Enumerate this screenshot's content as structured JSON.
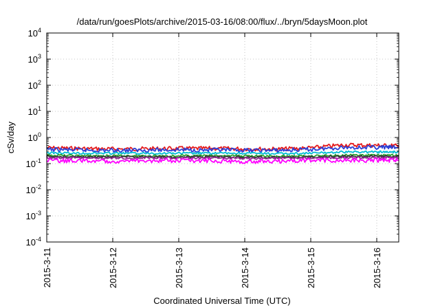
{
  "chart_data": {
    "type": "line",
    "title": "/data/run/goesPlots/archive/2015-03-16/08:00/flux/../bryn/5daysMoon.plot",
    "xlabel": "Coordinated Universal Time (UTC)",
    "ylabel": "cSv/day",
    "y_scale": "log",
    "ylim": [
      0.0001,
      10000
    ],
    "y_ticks": [
      {
        "base": "10",
        "exp": "-4",
        "value": 0.0001
      },
      {
        "base": "10",
        "exp": "-3",
        "value": 0.001
      },
      {
        "base": "10",
        "exp": "-2",
        "value": 0.01
      },
      {
        "base": "10",
        "exp": "-1",
        "value": 0.1
      },
      {
        "base": "10",
        "exp": "0",
        "value": 1
      },
      {
        "base": "10",
        "exp": "1",
        "value": 10
      },
      {
        "base": "10",
        "exp": "2",
        "value": 100
      },
      {
        "base": "10",
        "exp": "3",
        "value": 1000
      },
      {
        "base": "10",
        "exp": "4",
        "value": 10000
      }
    ],
    "xlim": [
      "2015-03-11 00:00",
      "2015-03-16 08:00"
    ],
    "x_ticks": [
      "2015-3-11",
      "2015-3-12",
      "2015-3-13",
      "2015-3-14",
      "2015-3-15",
      "2015-3-16"
    ],
    "grid": true,
    "series": [
      {
        "color": "#e41a1c",
        "x": [
          "2015-03-11 00:00",
          "2015-03-11 12:00",
          "2015-03-12 00:00",
          "2015-03-12 12:00",
          "2015-03-13 00:00",
          "2015-03-13 12:00",
          "2015-03-14 00:00",
          "2015-03-14 12:00",
          "2015-03-15 00:00",
          "2015-03-15 12:00",
          "2015-03-16 00:00",
          "2015-03-16 08:00"
        ],
        "values": [
          0.4,
          0.38,
          0.36,
          0.37,
          0.38,
          0.38,
          0.37,
          0.36,
          0.4,
          0.52,
          0.5,
          0.48
        ]
      },
      {
        "color": "#2c3fd6",
        "x": [
          "2015-03-11 00:00",
          "2015-03-11 12:00",
          "2015-03-12 00:00",
          "2015-03-12 12:00",
          "2015-03-13 00:00",
          "2015-03-13 12:00",
          "2015-03-14 00:00",
          "2015-03-14 12:00",
          "2015-03-15 00:00",
          "2015-03-15 12:00",
          "2015-03-16 00:00",
          "2015-03-16 08:00"
        ],
        "values": [
          0.35,
          0.33,
          0.32,
          0.33,
          0.34,
          0.33,
          0.32,
          0.32,
          0.35,
          0.42,
          0.42,
          0.42
        ]
      },
      {
        "color": "#00bcd4",
        "x": [
          "2015-03-11 00:00",
          "2015-03-11 12:00",
          "2015-03-12 00:00",
          "2015-03-12 12:00",
          "2015-03-13 00:00",
          "2015-03-13 12:00",
          "2015-03-14 00:00",
          "2015-03-14 12:00",
          "2015-03-15 00:00",
          "2015-03-15 12:00",
          "2015-03-16 00:00",
          "2015-03-16 08:00"
        ],
        "values": [
          0.26,
          0.25,
          0.25,
          0.25,
          0.25,
          0.25,
          0.25,
          0.24,
          0.25,
          0.28,
          0.28,
          0.28
        ]
      },
      {
        "color": "#2ca02c",
        "x": [
          "2015-03-11 00:00",
          "2015-03-11 12:00",
          "2015-03-12 00:00",
          "2015-03-12 12:00",
          "2015-03-13 00:00",
          "2015-03-13 12:00",
          "2015-03-14 00:00",
          "2015-03-14 12:00",
          "2015-03-15 00:00",
          "2015-03-15 12:00",
          "2015-03-16 00:00",
          "2015-03-16 08:00"
        ],
        "values": [
          0.21,
          0.2,
          0.2,
          0.2,
          0.2,
          0.2,
          0.2,
          0.19,
          0.2,
          0.21,
          0.21,
          0.21
        ]
      },
      {
        "color": "#333333",
        "x": [
          "2015-03-11 00:00",
          "2015-03-11 12:00",
          "2015-03-12 00:00",
          "2015-03-12 12:00",
          "2015-03-13 00:00",
          "2015-03-13 12:00",
          "2015-03-14 00:00",
          "2015-03-14 12:00",
          "2015-03-15 00:00",
          "2015-03-15 12:00",
          "2015-03-16 00:00",
          "2015-03-16 08:00"
        ],
        "values": [
          0.19,
          0.18,
          0.18,
          0.18,
          0.18,
          0.18,
          0.18,
          0.17,
          0.18,
          0.19,
          0.19,
          0.19
        ]
      },
      {
        "color": "#8e2a8e",
        "x": [
          "2015-03-11 00:00",
          "2015-03-11 12:00",
          "2015-03-12 00:00",
          "2015-03-12 12:00",
          "2015-03-13 00:00",
          "2015-03-13 12:00",
          "2015-03-14 00:00",
          "2015-03-14 12:00",
          "2015-03-15 00:00",
          "2015-03-15 12:00",
          "2015-03-16 00:00",
          "2015-03-16 08:00"
        ],
        "values": [
          0.17,
          0.165,
          0.16,
          0.165,
          0.165,
          0.165,
          0.16,
          0.16,
          0.165,
          0.17,
          0.17,
          0.17
        ]
      },
      {
        "color": "#ff00ff",
        "x": [
          "2015-03-11 00:00",
          "2015-03-11 12:00",
          "2015-03-12 00:00",
          "2015-03-12 12:00",
          "2015-03-13 00:00",
          "2015-03-13 12:00",
          "2015-03-14 00:00",
          "2015-03-14 12:00",
          "2015-03-15 00:00",
          "2015-03-15 12:00",
          "2015-03-16 00:00",
          "2015-03-16 08:00"
        ],
        "values": [
          0.13,
          0.13,
          0.125,
          0.13,
          0.13,
          0.13,
          0.12,
          0.125,
          0.13,
          0.135,
          0.135,
          0.135
        ]
      }
    ]
  }
}
